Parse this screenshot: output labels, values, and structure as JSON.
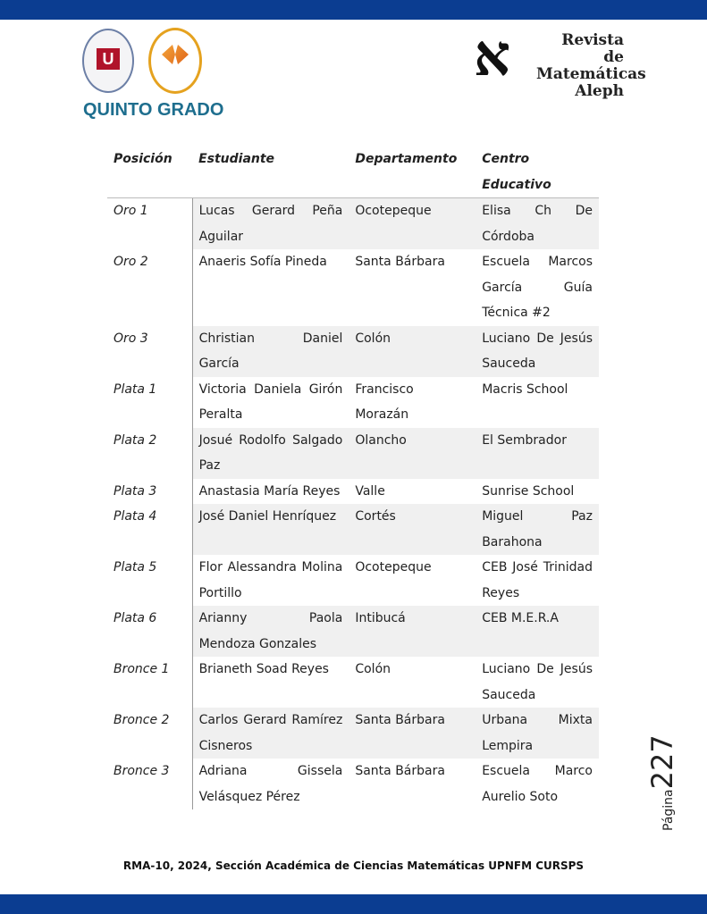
{
  "header": {
    "logo_right_text": [
      "Revista de",
      "Matemáticas",
      "Aleph"
    ],
    "logo_right_glyph": "א",
    "section_title": "QUINTO GRADO"
  },
  "table": {
    "headers": [
      "Posición",
      "Estudiante",
      "Departamento",
      "Centro Educativo"
    ],
    "rows": [
      [
        "Oro 1",
        "Lucas Gerard Peña Aguilar",
        "Ocotepeque",
        "Elisa Ch De Córdoba"
      ],
      [
        "Oro 2",
        "Anaeris Sofía Pineda",
        "Santa Bárbara",
        "Escuela Marcos García Guía Técnica #2"
      ],
      [
        "Oro 3",
        "Christian Daniel García",
        "Colón",
        "Luciano De Jesús Sauceda"
      ],
      [
        "Plata 1",
        "Victoria Daniela Girón Peralta",
        "Francisco Morazán",
        "Macris School"
      ],
      [
        "Plata 2",
        "Josué Rodolfo Salgado Paz",
        "Olancho",
        "El Sembrador"
      ],
      [
        "Plata 3",
        "Anastasia María Reyes",
        "Valle",
        "Sunrise School"
      ],
      [
        "Plata 4",
        "José Daniel Henríquez",
        "Cortés",
        "Miguel Paz Barahona"
      ],
      [
        "Plata 5",
        "Flor Alessandra Molina Portillo",
        "Ocotepeque",
        "CEB José Trinidad Reyes"
      ],
      [
        "Plata 6",
        "Arianny Paola Mendoza Gonzales",
        "Intibucá",
        "CEB M.E.R.A"
      ],
      [
        "Bronce 1",
        "Brianeth Soad Reyes",
        "Colón",
        "Luciano De Jesús Sauceda"
      ],
      [
        "Bronce 2",
        "Carlos Gerard Ramírez Cisneros",
        "Santa Bárbara",
        "Urbana Mixta Lempira"
      ],
      [
        "Bronce 3",
        "Adriana Gissela Velásquez Pérez",
        "Santa Bárbara",
        "Escuela Marco Aurelio Soto"
      ]
    ]
  },
  "page": {
    "label": "Página",
    "number": "227"
  },
  "footer": "RMA-10, 2024, Sección Académica de Ciencias Matemáticas UPNFM CURSPS",
  "colors": {
    "band": "#0b3d91",
    "title": "#1e6e8e",
    "row_shade": "#f0f0f0"
  }
}
